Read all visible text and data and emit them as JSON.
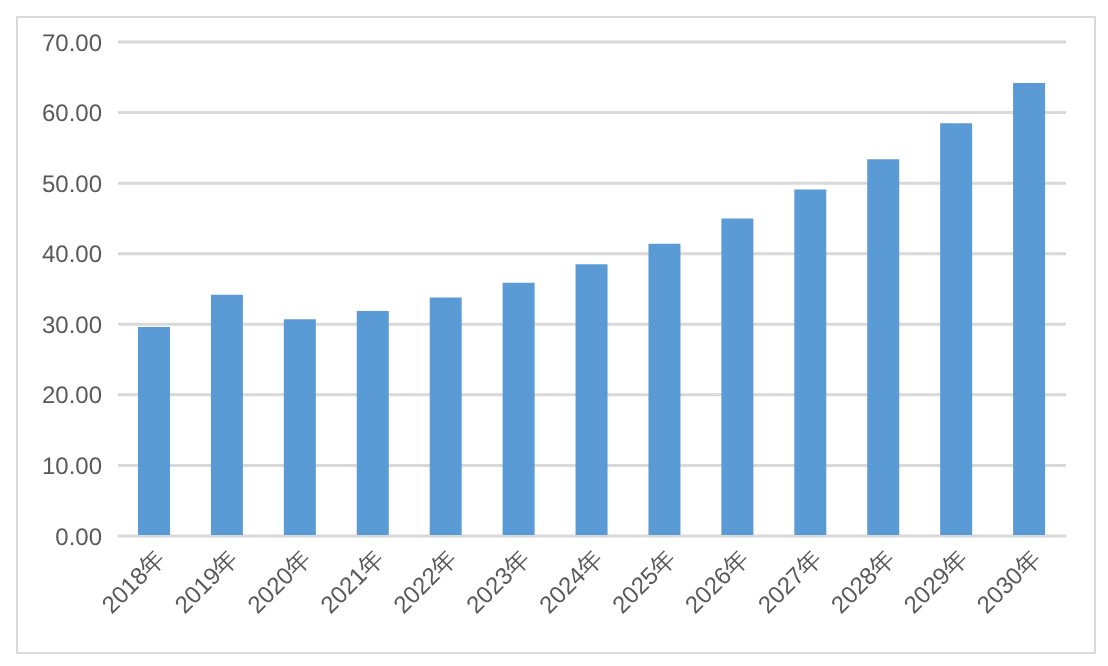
{
  "chart_data": {
    "type": "bar",
    "categories": [
      "2018年",
      "2019年",
      "2020年",
      "2021年",
      "2022年",
      "2023年",
      "2024年",
      "2025年",
      "2026年",
      "2027年",
      "2028年",
      "2029年",
      "2030年"
    ],
    "values": [
      29.6,
      34.2,
      30.7,
      31.9,
      33.8,
      35.9,
      38.5,
      41.4,
      45.0,
      49.1,
      53.4,
      58.5,
      64.2
    ],
    "color": "#5b9bd5",
    "ylim": [
      0,
      70
    ],
    "yticks": [
      {
        "value": 0,
        "label": "0.00"
      },
      {
        "value": 10,
        "label": "10.00"
      },
      {
        "value": 20,
        "label": "20.00"
      },
      {
        "value": 30,
        "label": "30.00"
      },
      {
        "value": 40,
        "label": "40.00"
      },
      {
        "value": 50,
        "label": "50.00"
      },
      {
        "value": 60,
        "label": "60.00"
      },
      {
        "value": 70,
        "label": "70.00"
      }
    ],
    "grid": "y"
  }
}
